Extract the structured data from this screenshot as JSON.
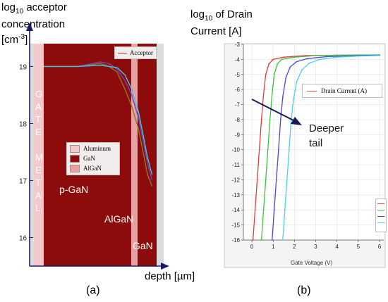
{
  "chart_data": [
    {
      "type": "line",
      "panel_label": "(a)",
      "ylabel_line1": "log",
      "ylabel_sub": "10",
      "ylabel_line1_rest": " acceptor",
      "ylabel_line2": "concentration",
      "ylabel_line3": "[cm",
      "ylabel_sup": "-3",
      "ylabel_line3_end": "]",
      "xlabel": "depth [µm]",
      "y_ticks": [
        "19",
        "18",
        "17",
        "16"
      ],
      "ylim": [
        15.5,
        19.4
      ],
      "legend_top": "Acceptor",
      "region_legend": [
        "Aluminum",
        "GaN",
        "AlGaN"
      ],
      "region_colors": {
        "Aluminum": "#f4c9cc",
        "GaN": "#8b0c0a",
        "AlGaN": "#e9a0a0"
      },
      "gate_metal_letters": [
        "G",
        "A",
        "T",
        "E",
        "",
        "M",
        "E",
        "T",
        "A",
        "L"
      ],
      "region_labels": {
        "pgan": "p-GaN",
        "algan": "AlGaN",
        "gan": "GaN"
      },
      "series": [
        {
          "color": "#8a7a2a",
          "x": [
            0.0,
            0.3,
            0.5,
            0.58,
            0.65,
            0.72,
            0.78,
            0.84,
            0.88,
            0.92,
            0.96
          ],
          "y": [
            19.0,
            19.0,
            19.05,
            19.0,
            18.9,
            18.6,
            18.3,
            17.9,
            17.5,
            17.1,
            16.9
          ]
        },
        {
          "color": "#7a3fbf",
          "x": [
            0.0,
            0.3,
            0.5,
            0.58,
            0.65,
            0.72,
            0.78,
            0.84,
            0.88,
            0.92,
            0.96
          ],
          "y": [
            19.0,
            19.0,
            19.08,
            19.05,
            18.95,
            18.75,
            18.5,
            18.1,
            17.7,
            17.3,
            17.0
          ]
        },
        {
          "color": "#43c8e0",
          "x": [
            0.0,
            0.3,
            0.5,
            0.58,
            0.65,
            0.72,
            0.78,
            0.84,
            0.88,
            0.92,
            0.96
          ],
          "y": [
            19.0,
            19.0,
            19.02,
            19.0,
            18.98,
            18.85,
            18.6,
            18.2,
            17.8,
            17.4,
            17.1
          ]
        }
      ]
    },
    {
      "type": "line",
      "panel_label": "(b)",
      "ylabel_line1": "log",
      "ylabel_sub": "10",
      "ylabel_line1_rest": " of Drain",
      "ylabel_line2": "Current [A]",
      "xlabel": "Gate Voltage (V)",
      "legend": "Drain Current (A)",
      "annotation_line1": "Deeper",
      "annotation_line2": "tail",
      "xlim": [
        -0.4,
        6.2
      ],
      "ylim": [
        -16,
        -3
      ],
      "x_ticks": [
        "0",
        "1",
        "2",
        "3",
        "4",
        "5",
        "6"
      ],
      "y_ticks": [
        "-3",
        "-4",
        "-5",
        "-6",
        "-7",
        "-8",
        "-9",
        "-10",
        "-11",
        "-12",
        "-13",
        "-14",
        "-15",
        "-16"
      ],
      "series": [
        {
          "color": "#e03c3c",
          "x": [
            0.05,
            0.15,
            0.25,
            0.35,
            0.45,
            0.55,
            0.65,
            0.8,
            1.0,
            1.5,
            2.5,
            4,
            6
          ],
          "y": [
            -16,
            -14,
            -12,
            -10,
            -8,
            -6.3,
            -5.0,
            -4.3,
            -4.0,
            -3.85,
            -3.75,
            -3.72,
            -3.7
          ]
        },
        {
          "color": "#3cc43c",
          "x": [
            0.45,
            0.55,
            0.65,
            0.75,
            0.85,
            0.95,
            1.05,
            1.2,
            1.4,
            2.0,
            3,
            4.5,
            6
          ],
          "y": [
            -16,
            -14,
            -12,
            -10,
            -8,
            -6.3,
            -5.0,
            -4.3,
            -4.0,
            -3.85,
            -3.75,
            -3.72,
            -3.7
          ]
        },
        {
          "color": "#4b46d8",
          "x": [
            0.95,
            1.05,
            1.15,
            1.25,
            1.35,
            1.45,
            1.6,
            1.8,
            2.1,
            2.6,
            3.5,
            5,
            6
          ],
          "y": [
            -16,
            -14,
            -12,
            -10,
            -8,
            -6.5,
            -5.2,
            -4.5,
            -4.15,
            -3.95,
            -3.82,
            -3.75,
            -3.72
          ]
        },
        {
          "color": "#44d4ec",
          "x": [
            1.45,
            1.55,
            1.65,
            1.75,
            1.85,
            1.95,
            2.1,
            2.35,
            2.7,
            3.2,
            4,
            5,
            6
          ],
          "y": [
            -16,
            -14,
            -12,
            -10,
            -8,
            -6.7,
            -5.5,
            -4.7,
            -4.25,
            -4.0,
            -3.85,
            -3.78,
            -3.74
          ]
        }
      ]
    }
  ]
}
